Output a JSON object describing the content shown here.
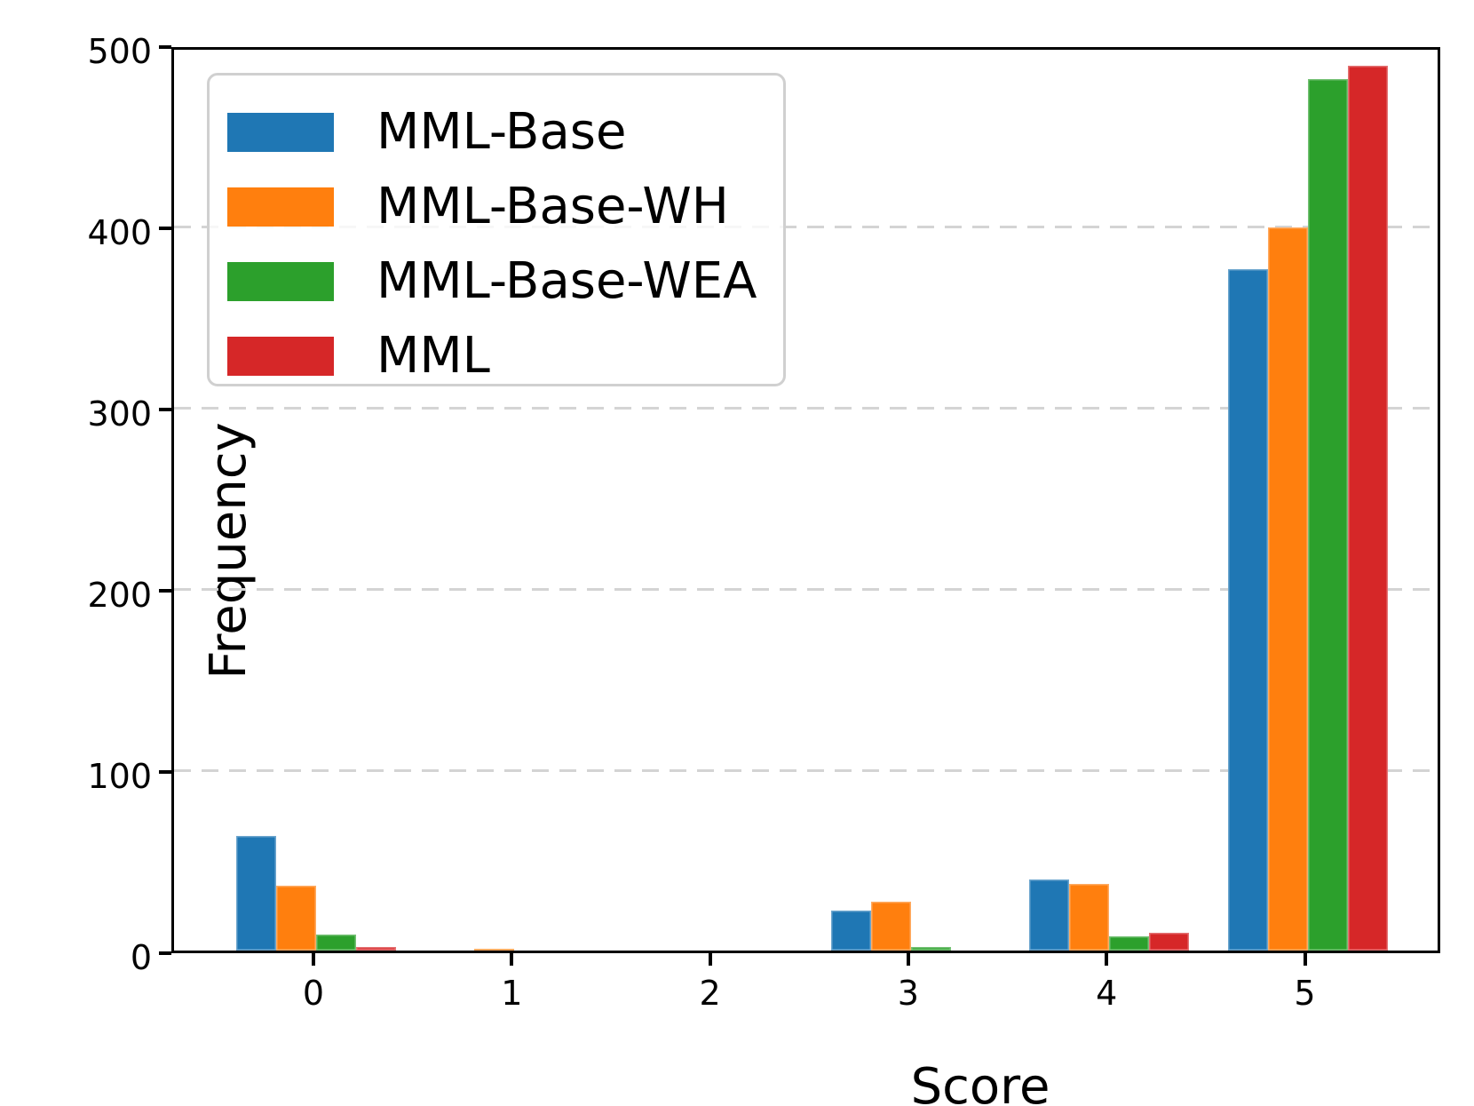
{
  "chart_data": {
    "type": "bar",
    "categories": [
      "0",
      "1",
      "2",
      "3",
      "4",
      "5"
    ],
    "series": [
      {
        "name": "MML-Base",
        "color": "#1f77b4",
        "values": [
          63,
          0,
          0,
          22,
          39,
          376
        ]
      },
      {
        "name": "MML-Base-WH",
        "color": "#ff7f0e",
        "values": [
          36,
          1,
          0,
          27,
          37,
          399
        ]
      },
      {
        "name": "MML-Base-WEA",
        "color": "#2ca02c",
        "values": [
          9,
          0,
          0,
          2,
          8,
          481
        ]
      },
      {
        "name": "MML",
        "color": "#d62728",
        "values": [
          2,
          0,
          0,
          0,
          10,
          488
        ]
      }
    ],
    "title": "",
    "xlabel": "Score",
    "ylabel": "Frequency",
    "ylim": [
      0,
      500
    ],
    "yticks": [
      0,
      100,
      200,
      300,
      400,
      500
    ],
    "grid": "horizontal dashed gridlines at 100,200,300,400",
    "gridline_color": "#d4d4d4",
    "axis_color": "#000000",
    "legend_position": "upper-left"
  }
}
